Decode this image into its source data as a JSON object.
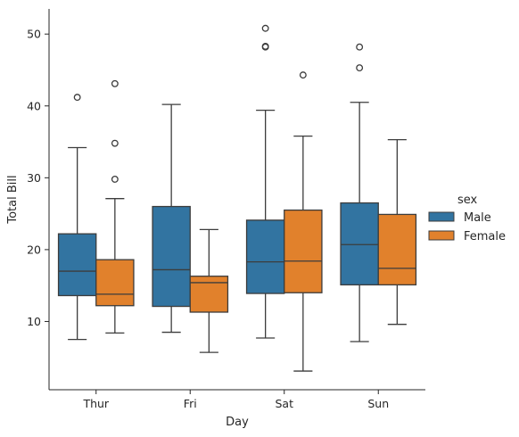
{
  "chart_data": {
    "type": "box",
    "xlabel": "Day",
    "ylabel": "Total Bill",
    "categories": [
      "Thur",
      "Fri",
      "Sat",
      "Sun"
    ],
    "ylim": [
      0.5,
      53.5
    ],
    "yticks": [
      10,
      20,
      30,
      40,
      50
    ],
    "grid": false,
    "legend": {
      "title": "sex",
      "placement": "right"
    },
    "series": [
      {
        "name": "Male",
        "color": "#3274a1",
        "boxes": [
          {
            "category": "Thur",
            "whisker_low": 7.5,
            "q1": 13.6,
            "median": 17.0,
            "q3": 22.2,
            "whisker_high": 34.2,
            "outliers": [
              41.2
            ]
          },
          {
            "category": "Fri",
            "whisker_low": 8.5,
            "q1": 12.1,
            "median": 17.2,
            "q3": 26.0,
            "whisker_high": 40.2,
            "outliers": []
          },
          {
            "category": "Sat",
            "whisker_low": 7.7,
            "q1": 13.9,
            "median": 18.3,
            "q3": 24.1,
            "whisker_high": 39.4,
            "outliers": [
              48.2,
              48.3,
              50.8
            ]
          },
          {
            "category": "Sun",
            "whisker_low": 7.2,
            "q1": 15.1,
            "median": 20.7,
            "q3": 26.5,
            "whisker_high": 40.5,
            "outliers": [
              45.3,
              48.2
            ]
          }
        ]
      },
      {
        "name": "Female",
        "color": "#e1812c",
        "boxes": [
          {
            "category": "Thur",
            "whisker_low": 8.4,
            "q1": 12.2,
            "median": 13.8,
            "q3": 18.6,
            "whisker_high": 27.1,
            "outliers": [
              29.8,
              34.8,
              43.1
            ]
          },
          {
            "category": "Fri",
            "whisker_low": 5.7,
            "q1": 11.3,
            "median": 15.4,
            "q3": 16.3,
            "whisker_high": 22.8,
            "outliers": []
          },
          {
            "category": "Sat",
            "whisker_low": 3.1,
            "q1": 14.0,
            "median": 18.4,
            "q3": 25.5,
            "whisker_high": 35.8,
            "outliers": [
              44.3
            ]
          },
          {
            "category": "Sun",
            "whisker_low": 9.6,
            "q1": 15.1,
            "median": 17.4,
            "q3": 24.9,
            "whisker_high": 35.3,
            "outliers": []
          }
        ]
      }
    ]
  }
}
